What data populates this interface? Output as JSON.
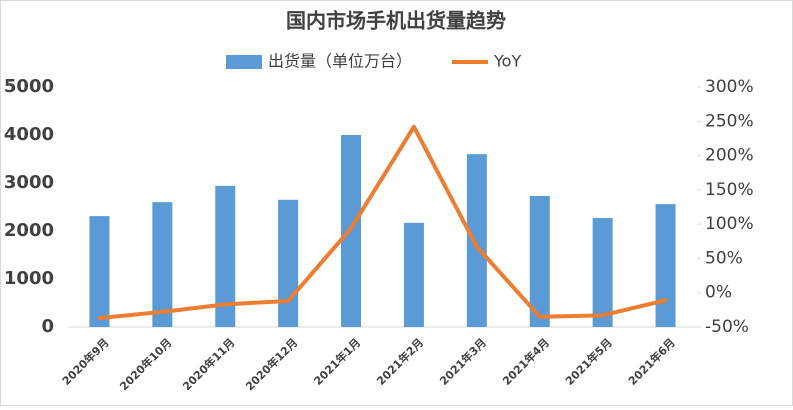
{
  "chart_data": {
    "type": "combo",
    "title": "国内市场手机出货量趋势",
    "categories": [
      "2020年9月",
      "2020年10月",
      "2020年11月",
      "2020年12月",
      "2021年1月",
      "2021年2月",
      "2021年3月",
      "2021年4月",
      "2021年5月",
      "2021年6月"
    ],
    "series": [
      {
        "name": "出货量（单位万台）",
        "type": "bar",
        "axis": "y",
        "color": "#5b9bd5",
        "values": [
          2310,
          2600,
          2940,
          2650,
          4000,
          2170,
          3600,
          2730,
          2270,
          2560
        ]
      },
      {
        "name": "YoY",
        "type": "line",
        "axis": "y2",
        "color": "#ed7d31",
        "values": [
          -37,
          -28,
          -17,
          -12,
          94,
          242,
          67,
          -35,
          -33,
          -11
        ]
      }
    ],
    "ylim": [
      0,
      5000
    ],
    "yticks": [
      0,
      1000,
      2000,
      3000,
      4000,
      5000
    ],
    "y2lim": [
      -50,
      300
    ],
    "y2ticks": [
      {
        "value": -50,
        "label": "-50%"
      },
      {
        "value": 0,
        "label": "0%"
      },
      {
        "value": 50,
        "label": "50%"
      },
      {
        "value": 100,
        "label": "100%"
      },
      {
        "value": 150,
        "label": "150%"
      },
      {
        "value": 200,
        "label": "200%"
      },
      {
        "value": 250,
        "label": "250%"
      },
      {
        "value": 300,
        "label": "300%"
      }
    ],
    "grid": false,
    "legend": "top"
  }
}
